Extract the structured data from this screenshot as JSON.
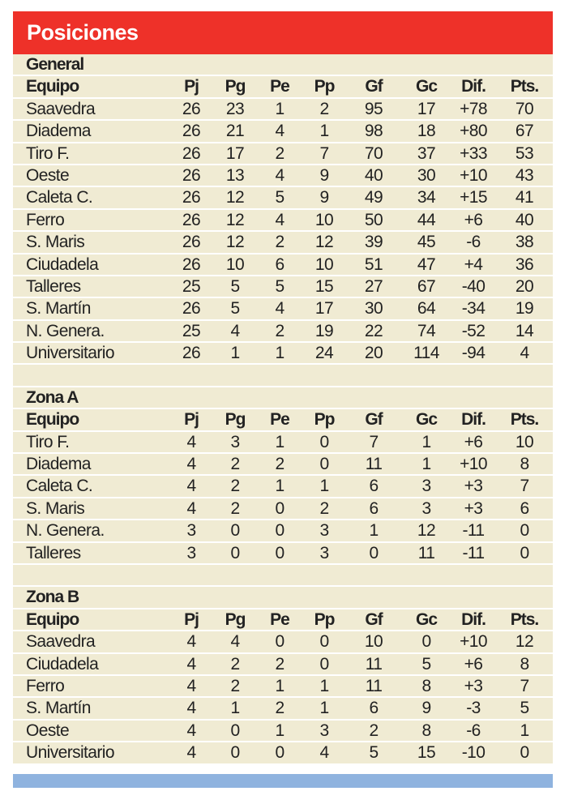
{
  "header": {
    "title": "Posiciones"
  },
  "colors": {
    "header_red": "#ee3129",
    "row_cream": "#f0ebd3",
    "bottom_bar_blue": "#8fb3df"
  },
  "columns": [
    "Equipo",
    "Pj",
    "Pg",
    "Pe",
    "Pp",
    "Gf",
    "Gc",
    "Dif.",
    "Pts."
  ],
  "tables": [
    {
      "title": "General",
      "rows": [
        [
          "Saavedra",
          "26",
          "23",
          "1",
          "2",
          "95",
          "17",
          "+78",
          "70"
        ],
        [
          "Diadema",
          "26",
          "21",
          "4",
          "1",
          "98",
          "18",
          "+80",
          "67"
        ],
        [
          "Tiro F.",
          "26",
          "17",
          "2",
          "7",
          "70",
          "37",
          "+33",
          "53"
        ],
        [
          "Oeste",
          "26",
          "13",
          "4",
          "9",
          "40",
          "30",
          "+10",
          "43"
        ],
        [
          "Caleta C.",
          "26",
          "12",
          "5",
          "9",
          "49",
          "34",
          "+15",
          "41"
        ],
        [
          "Ferro",
          "26",
          "12",
          "4",
          "10",
          "50",
          "44",
          "+6",
          "40"
        ],
        [
          "S. Maris",
          "26",
          "12",
          "2",
          "12",
          "39",
          "45",
          "-6",
          "38"
        ],
        [
          "Ciudadela",
          "26",
          "10",
          "6",
          "10",
          "51",
          "47",
          "+4",
          "36"
        ],
        [
          "Talleres",
          "25",
          "5",
          "5",
          "15",
          "27",
          "67",
          "-40",
          "20"
        ],
        [
          "S. Martín",
          "26",
          "5",
          "4",
          "17",
          "30",
          "64",
          "-34",
          "19"
        ],
        [
          "N. Genera.",
          "25",
          "4",
          "2",
          "19",
          "22",
          "74",
          "-52",
          "14"
        ],
        [
          "Universitario",
          "26",
          "1",
          "1",
          "24",
          "20",
          "114",
          "-94",
          "4"
        ]
      ]
    },
    {
      "title": "Zona A",
      "rows": [
        [
          "Tiro F.",
          "4",
          "3",
          "1",
          "0",
          "7",
          "1",
          "+6",
          "10"
        ],
        [
          "Diadema",
          "4",
          "2",
          "2",
          "0",
          "11",
          "1",
          "+10",
          "8"
        ],
        [
          "Caleta C.",
          "4",
          "2",
          "1",
          "1",
          "6",
          "3",
          "+3",
          "7"
        ],
        [
          "S. Maris",
          "4",
          "2",
          "0",
          "2",
          "6",
          "3",
          "+3",
          "6"
        ],
        [
          "N. Genera.",
          "3",
          "0",
          "0",
          "3",
          "1",
          "12",
          "-11",
          "0"
        ],
        [
          "Talleres",
          "3",
          "0",
          "0",
          "3",
          "0",
          "11",
          "-11",
          "0"
        ]
      ]
    },
    {
      "title": "Zona B",
      "rows": [
        [
          "Saavedra",
          "4",
          "4",
          "0",
          "0",
          "10",
          "0",
          "+10",
          "12"
        ],
        [
          "Ciudadela",
          "4",
          "2",
          "2",
          "0",
          "11",
          "5",
          "+6",
          "8"
        ],
        [
          "Ferro",
          "4",
          "2",
          "1",
          "1",
          "11",
          "8",
          "+3",
          "7"
        ],
        [
          "S. Martín",
          "4",
          "1",
          "2",
          "1",
          "6",
          "9",
          "-3",
          "5"
        ],
        [
          "Oeste",
          "4",
          "0",
          "1",
          "3",
          "2",
          "8",
          "-6",
          "1"
        ],
        [
          "Universitario",
          "4",
          "0",
          "0",
          "4",
          "5",
          "15",
          "-10",
          "0"
        ]
      ]
    }
  ]
}
